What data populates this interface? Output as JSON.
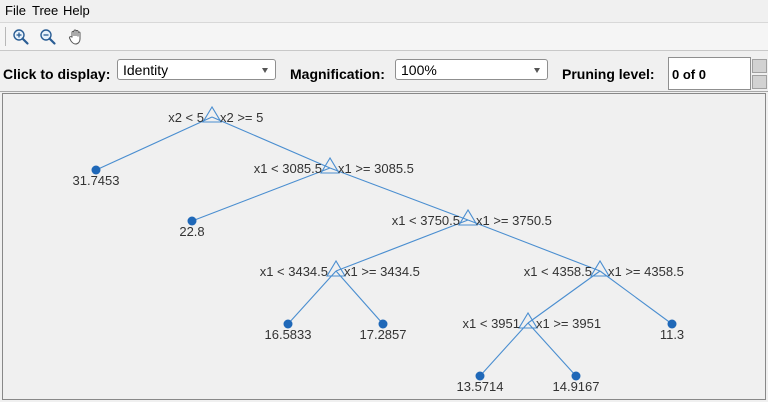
{
  "menu": {
    "items": [
      "File",
      "Tree",
      "Help"
    ]
  },
  "toolbar": {
    "tools": [
      {
        "name": "zoom-in-tool",
        "icon": "zoom-in-icon"
      },
      {
        "name": "zoom-out-tool",
        "icon": "zoom-out-icon"
      },
      {
        "name": "pan-tool",
        "icon": "hand-pan-icon"
      }
    ]
  },
  "controls": {
    "display_label": "Click to display:",
    "display_value": "Identity",
    "magnification_label": "Magnification:",
    "magnification_value": "100%",
    "pruning_label": "Pruning level:",
    "pruning_value": "0 of 0"
  },
  "tree": {
    "edge_color": "#4a8ed0",
    "leaf_color": "#1f68b8",
    "nodes": [
      {
        "id": "n1",
        "type": "split",
        "left_rule": "x2 < 5",
        "right_rule": "x2 >= 5"
      },
      {
        "id": "n2",
        "type": "leaf",
        "value": "31.7453",
        "parent": "n1"
      },
      {
        "id": "n3",
        "type": "split",
        "left_rule": "x1 < 3085.5",
        "right_rule": "x1 >= 3085.5",
        "parent": "n1"
      },
      {
        "id": "n4",
        "type": "leaf",
        "value": "22.8",
        "parent": "n3"
      },
      {
        "id": "n5",
        "type": "split",
        "left_rule": "x1 < 3750.5",
        "right_rule": "x1 >= 3750.5",
        "parent": "n3"
      },
      {
        "id": "n6",
        "type": "split",
        "left_rule": "x1 < 3434.5",
        "right_rule": "x1 >= 3434.5",
        "parent": "n5"
      },
      {
        "id": "n7",
        "type": "split",
        "left_rule": "x1 < 4358.5",
        "right_rule": "x1 >= 4358.5",
        "parent": "n5"
      },
      {
        "id": "n8",
        "type": "leaf",
        "value": "16.5833",
        "parent": "n6"
      },
      {
        "id": "n9",
        "type": "leaf",
        "value": "17.2857",
        "parent": "n6"
      },
      {
        "id": "n10",
        "type": "split",
        "left_rule": "x1 < 3951",
        "right_rule": "x1 >= 3951",
        "parent": "n7"
      },
      {
        "id": "n11",
        "type": "leaf",
        "value": "11.3",
        "parent": "n7"
      },
      {
        "id": "n12",
        "type": "leaf",
        "value": "13.5714",
        "parent": "n10"
      },
      {
        "id": "n13",
        "type": "leaf",
        "value": "14.9167",
        "parent": "n10"
      }
    ]
  }
}
